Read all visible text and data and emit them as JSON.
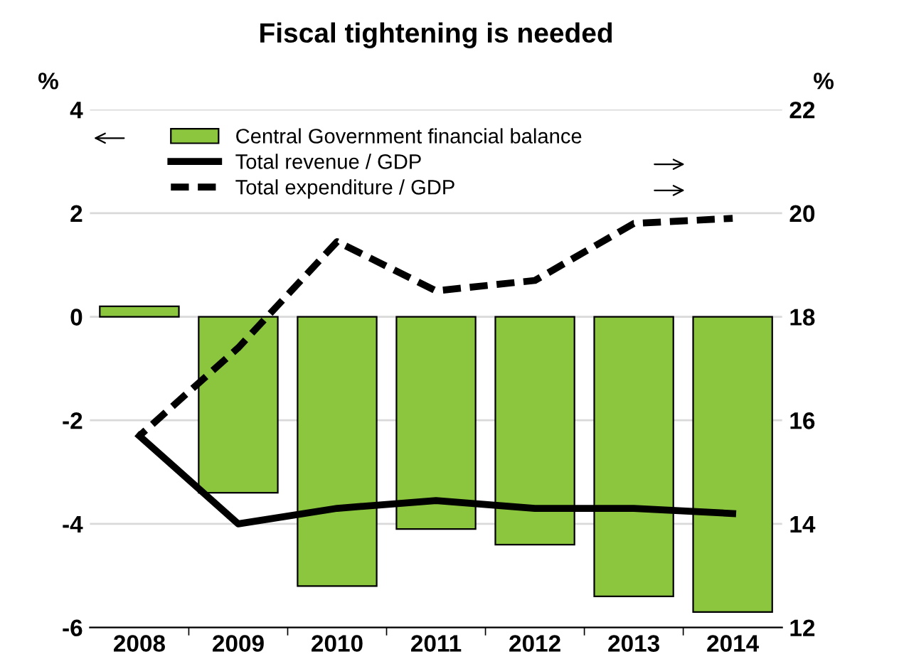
{
  "chart_data": {
    "type": "bar",
    "title": "Fiscal tightening is needed",
    "ylabel": "%",
    "y2label": "%",
    "categories": [
      "2008",
      "2009",
      "2010",
      "2011",
      "2012",
      "2013",
      "2014"
    ],
    "series": [
      {
        "name": "Central Government financial balance",
        "color": "#8cc63f",
        "values": [
          0.2,
          -3.4,
          -5.2,
          -4.1,
          -4.4,
          -5.4,
          -5.7
        ]
      },
      {
        "name": "Total revenue / GDP",
        "type": "line",
        "axis": "y2",
        "line_style": "solid",
        "color": "#000000",
        "values": [
          15.7,
          14.0,
          14.3,
          14.45,
          14.3,
          14.3,
          14.2
        ]
      },
      {
        "name": "Total expenditure / GDP",
        "type": "line",
        "axis": "y2",
        "line_style": "dashed",
        "color": "#000000",
        "values": [
          15.7,
          17.4,
          19.45,
          18.5,
          18.7,
          19.8,
          19.9
        ]
      }
    ],
    "ylim": [
      -6,
      4
    ],
    "yticks": [
      -6,
      -4,
      -2,
      0,
      2,
      4
    ],
    "y2lim": [
      12,
      22
    ],
    "y2ticks": [
      12,
      14,
      16,
      18,
      20,
      22
    ],
    "grid": "y",
    "legend": "top left"
  }
}
